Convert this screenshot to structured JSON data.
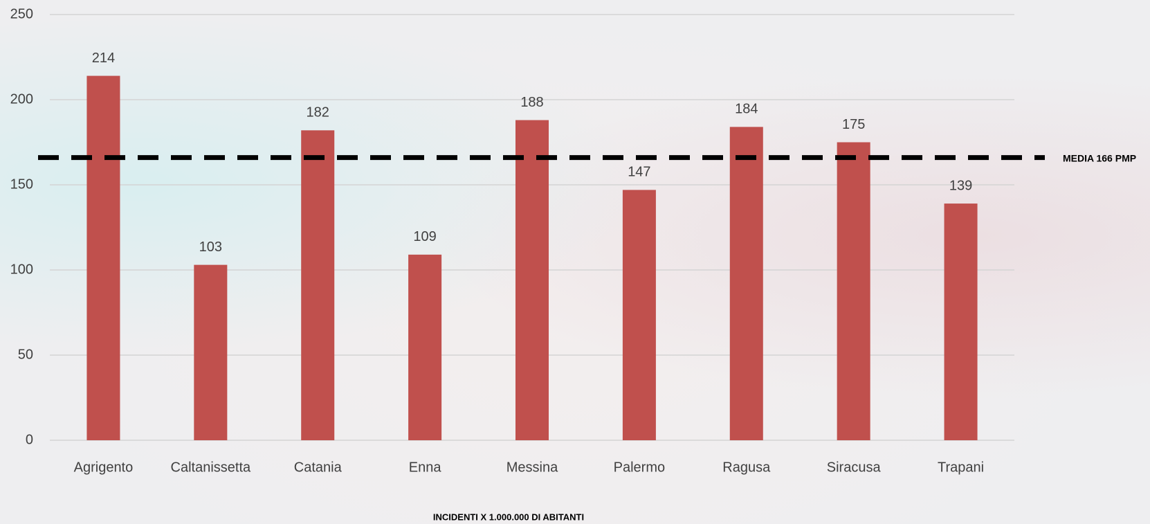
{
  "chart_data": {
    "type": "bar",
    "categories": [
      "Agrigento",
      "Caltanissetta",
      "Catania",
      "Enna",
      "Messina",
      "Palermo",
      "Ragusa",
      "Siracusa",
      "Trapani"
    ],
    "values": [
      214,
      103,
      182,
      109,
      188,
      147,
      184,
      175,
      139
    ],
    "color": "#c0504d",
    "ylim": [
      0,
      250
    ],
    "yticks": [
      0,
      50,
      100,
      150,
      200,
      250
    ],
    "grid": true,
    "reference_line": {
      "value": 166,
      "label": "MEDIA 166 PMP"
    },
    "x_label": "INCIDENTI X 1.000.000 DI ABITANTI"
  }
}
